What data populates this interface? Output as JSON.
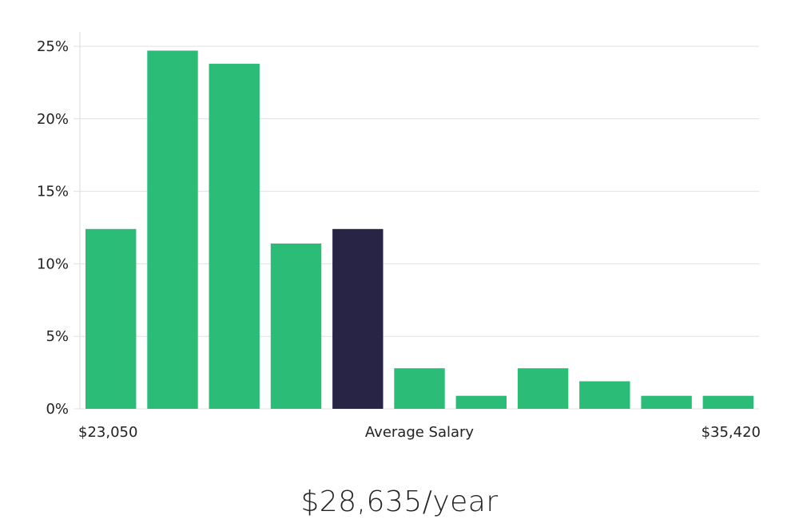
{
  "chart_data": {
    "type": "bar",
    "title": "",
    "xlabel": "Average Salary",
    "ylabel": "",
    "ylim": [
      0,
      26
    ],
    "yticks": [
      0,
      5,
      10,
      15,
      20,
      25
    ],
    "ytick_labels": [
      "0%",
      "5%",
      "10%",
      "15%",
      "20%",
      "25%"
    ],
    "x_min_label": "$23,050",
    "x_max_label": "$35,420",
    "values": [
      12.4,
      24.7,
      23.8,
      11.4,
      12.4,
      2.8,
      0.9,
      2.8,
      1.9,
      0.9,
      0.9
    ],
    "highlight_index": 4,
    "colors": {
      "bar": "#2bbd78",
      "highlight": "#272446",
      "grid": "#e0e0e0",
      "axis": "#d8d8d8"
    }
  },
  "summary": {
    "salary_text": "$28,635/year"
  }
}
